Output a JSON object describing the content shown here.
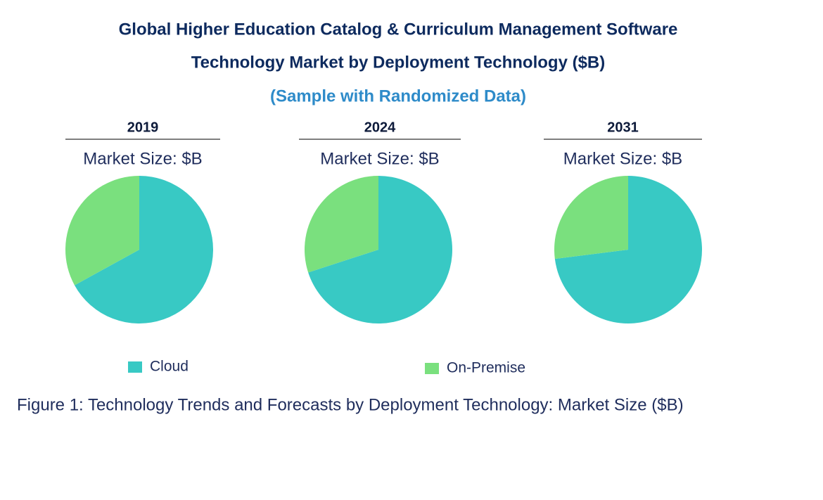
{
  "chart_data": {
    "type": "pie",
    "title": [
      "Global Higher Education Catalog & Curriculum Management Software",
      "Technology Market by Deployment Technology ($B)"
    ],
    "subtitle": "(Sample with Randomized Data)",
    "panel_label": "Market Size: $B",
    "categories": [
      "2019",
      "2024",
      "2031"
    ],
    "series": [
      {
        "name": "Cloud",
        "color": "#38c9c4",
        "values": [
          67,
          70,
          73
        ]
      },
      {
        "name": "On-Premise",
        "color": "#7ae07e",
        "values": [
          33,
          30,
          27
        ]
      }
    ],
    "caption": "Figure 1: Technology Trends and Forecasts by Deployment Technology: Market Size ($B)"
  }
}
